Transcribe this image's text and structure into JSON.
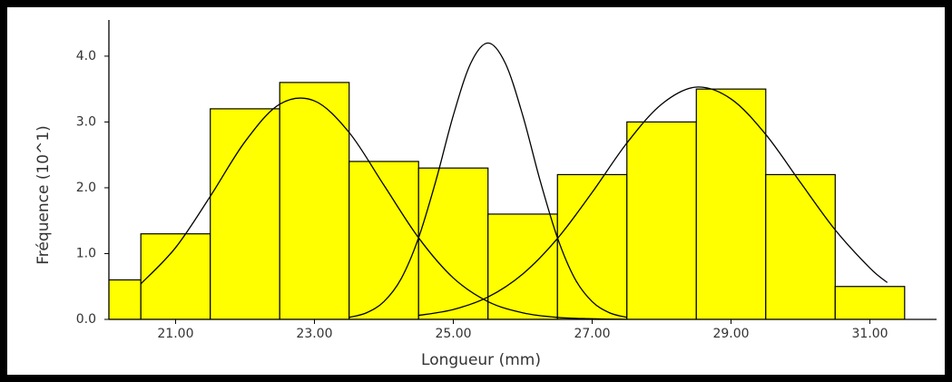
{
  "chart_data": {
    "type": "histogram",
    "xlabel": "Longueur (mm)",
    "ylabel": "Fréquence (10^1)",
    "bins": [
      19.5,
      20.5,
      21.5,
      22.5,
      23.5,
      24.5,
      25.5,
      26.5,
      27.5,
      28.5,
      29.5,
      30.5,
      31.5
    ],
    "counts": [
      0.6,
      1.3,
      3.2,
      3.6,
      2.4,
      2.3,
      1.6,
      2.2,
      3.0,
      3.5,
      2.2,
      0.5
    ],
    "color": "#ffff00",
    "curves": [
      {
        "color": "#000000",
        "x": [
          20.5,
          21.0,
          21.5,
          22.0,
          22.5,
          23.0,
          23.5,
          24.0,
          24.5,
          25.0,
          25.5,
          26.0,
          26.5,
          27.0,
          27.5
        ],
        "values": [
          0.54,
          1.09,
          1.87,
          2.7,
          3.27,
          3.32,
          2.84,
          2.04,
          1.24,
          0.63,
          0.27,
          0.1,
          0.03,
          0.01,
          0.0
        ]
      },
      {
        "color": "#000000",
        "x": [
          23.5,
          23.75,
          24.0,
          24.25,
          24.5,
          24.75,
          25.0,
          25.25,
          25.5,
          25.75,
          26.0,
          26.25,
          26.5,
          26.75,
          27.0,
          27.25,
          27.5
        ],
        "values": [
          0.03,
          0.1,
          0.27,
          0.62,
          1.24,
          2.11,
          3.1,
          3.89,
          4.2,
          3.89,
          3.1,
          2.11,
          1.24,
          0.62,
          0.27,
          0.1,
          0.03
        ]
      },
      {
        "color": "#000000",
        "x": [
          24.5,
          25.0,
          25.5,
          26.0,
          26.5,
          27.0,
          27.5,
          28.0,
          28.5,
          29.0,
          29.5,
          30.0,
          30.5,
          31.0,
          31.25
        ],
        "values": [
          0.06,
          0.15,
          0.34,
          0.69,
          1.23,
          1.93,
          2.68,
          3.27,
          3.53,
          3.35,
          2.81,
          2.08,
          1.36,
          0.78,
          0.56
        ]
      }
    ],
    "xlim": [
      20.04,
      31.96
    ],
    "ylim": [
      0,
      4.55
    ],
    "xticks": [
      {
        "value": 21,
        "label": "21.00"
      },
      {
        "value": 23,
        "label": "23.00"
      },
      {
        "value": 25,
        "label": "25.00"
      },
      {
        "value": 27,
        "label": "27.00"
      },
      {
        "value": 29,
        "label": "29.00"
      },
      {
        "value": 31,
        "label": "31.00"
      }
    ],
    "yticks": [
      {
        "value": 0,
        "label": "0.0"
      },
      {
        "value": 1,
        "label": "1.0"
      },
      {
        "value": 2,
        "label": "2.0"
      },
      {
        "value": 3,
        "label": "3.0"
      },
      {
        "value": 4,
        "label": "4.0"
      }
    ]
  }
}
